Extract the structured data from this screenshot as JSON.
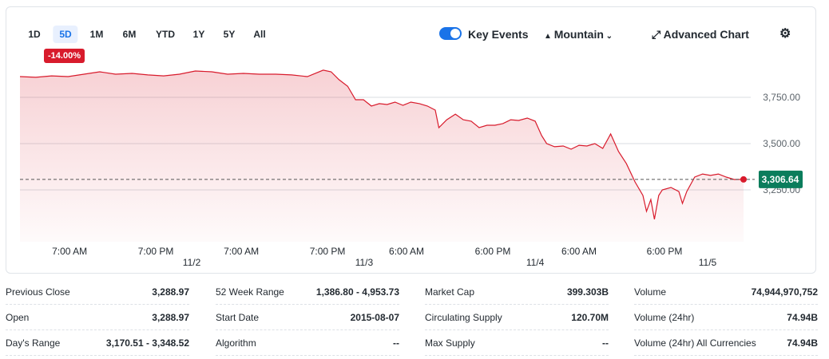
{
  "toolbar": {
    "ranges": [
      "1D",
      "5D",
      "1M",
      "6M",
      "YTD",
      "1Y",
      "5Y",
      "All"
    ],
    "change_badge": "-14.00%",
    "key_events": "Key Events",
    "chart_style": "Mountain",
    "advanced_chart": "Advanced Chart"
  },
  "chart_data": {
    "type": "line",
    "color": "#d81b2c",
    "x": [
      0,
      2.2,
      4.4,
      6.7,
      8.9,
      11.1,
      13.3,
      15.6,
      17.8,
      20,
      22.2,
      24.4,
      26.7,
      28.9,
      31.1,
      33.3,
      35.6,
      37.8,
      40,
      42.2,
      43.3,
      44.4,
      45.6,
      46.7,
      47.8,
      48.9,
      50,
      51.1,
      52.2,
      53.3,
      54.4,
      55.6,
      56.7,
      57.8,
      58.3,
      59.4,
      60.6,
      61.7,
      62.8,
      63.9,
      65,
      66.1,
      67.2,
      68.3,
      69.4,
      70.6,
      71.7,
      72.6,
      73.3,
      74.4,
      75.6,
      76.7,
      77.8,
      78.9,
      80,
      81.1,
      82.2,
      83.3,
      84.4,
      85.6,
      86.7,
      87.2,
      87.8,
      88.3,
      88.9,
      89.4,
      90.6,
      91.7,
      92.2,
      92.8,
      93.9,
      95,
      96.1,
      97.2,
      98.3,
      99.4,
      100.7
    ],
    "values": [
      3862,
      3858,
      3866,
      3862,
      3875,
      3888,
      3875,
      3879,
      3871,
      3866,
      3875,
      3892,
      3888,
      3875,
      3879,
      3875,
      3875,
      3871,
      3862,
      3897,
      3888,
      3845,
      3810,
      3737,
      3737,
      3703,
      3716,
      3711,
      3724,
      3707,
      3724,
      3716,
      3703,
      3681,
      3586,
      3629,
      3659,
      3629,
      3621,
      3586,
      3599,
      3599,
      3608,
      3629,
      3625,
      3638,
      3621,
      3543,
      3500,
      3483,
      3487,
      3470,
      3491,
      3487,
      3500,
      3474,
      3552,
      3457,
      3392,
      3293,
      3220,
      3134,
      3198,
      3091,
      3220,
      3250,
      3263,
      3241,
      3177,
      3241,
      3319,
      3336,
      3328,
      3336,
      3319,
      3306,
      3306.64
    ],
    "xlim": [
      0,
      100.7
    ],
    "ylim": [
      2970,
      3974
    ],
    "xticks": [
      {
        "value": 6.9,
        "label": "7:00 AM"
      },
      {
        "value": 18.9,
        "label": "7:00 PM"
      },
      {
        "value": 30.8,
        "label": "7:00 AM"
      },
      {
        "value": 42.8,
        "label": "7:00 PM"
      },
      {
        "value": 53.8,
        "label": "6:00 AM"
      },
      {
        "value": 65.8,
        "label": "6:00 PM"
      },
      {
        "value": 77.8,
        "label": "6:00 AM"
      },
      {
        "value": 89.7,
        "label": "6:00 PM"
      }
    ],
    "date_ticks": [
      {
        "value": 23.9,
        "label": "11/2"
      },
      {
        "value": 47.9,
        "label": "11/3"
      },
      {
        "value": 71.7,
        "label": "11/4"
      },
      {
        "value": 95.7,
        "label": "11/5"
      }
    ],
    "yticks": [
      {
        "value": 3250,
        "label": "3,250.00"
      },
      {
        "value": 3500,
        "label": "3,500.00"
      },
      {
        "value": 3750,
        "label": "3,750.00"
      }
    ],
    "last_price": {
      "value": 3306.64,
      "label": "3,306.64"
    }
  },
  "stats": [
    [
      {
        "label": "Previous Close",
        "value": "3,288.97"
      },
      {
        "label": "Open",
        "value": "3,288.97"
      },
      {
        "label": "Day's Range",
        "value": "3,170.51 - 3,348.52"
      }
    ],
    [
      {
        "label": "52 Week Range",
        "value": "1,386.80 - 4,953.73"
      },
      {
        "label": "Start Date",
        "value": "2015-08-07"
      },
      {
        "label": "Algorithm",
        "value": "--"
      }
    ],
    [
      {
        "label": "Market Cap",
        "value": "399.303B"
      },
      {
        "label": "Circulating Supply",
        "value": "120.70M"
      },
      {
        "label": "Max Supply",
        "value": "--"
      }
    ],
    [
      {
        "label": "Volume",
        "value": "74,944,970,752"
      },
      {
        "label": "Volume (24hr)",
        "value": "74.94B"
      },
      {
        "label": "Volume (24hr) All Currencies",
        "value": "74.94B"
      }
    ]
  ]
}
